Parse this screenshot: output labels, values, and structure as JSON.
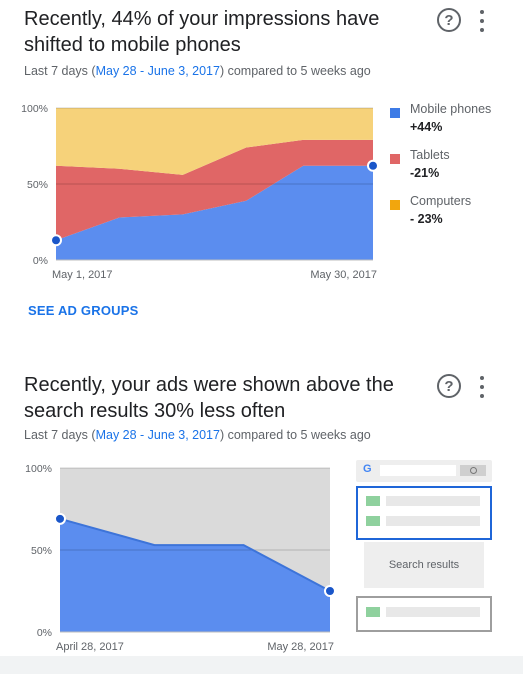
{
  "card1": {
    "title": "Recently, 44% of your impressions have shifted to mobile phones",
    "subtitle_prefix": "Last 7 days (",
    "subtitle_range": "May 28 - June 3, 2017",
    "subtitle_suffix": ") compared to 5 weeks ago",
    "help_icon": "help-circle-icon",
    "menu_icon": "more-vert-icon",
    "action_label": "SEE AD GROUPS",
    "legend": [
      {
        "name": "Mobile phones",
        "change": "+44%",
        "color": "#3d7be6"
      },
      {
        "name": "Tablets",
        "change": "-21%",
        "color": "#e06666"
      },
      {
        "name": "Computers",
        "change": "- 23%",
        "color": "#f2a60d"
      }
    ]
  },
  "card2": {
    "title": "Recently, your ads were shown above the search results 30% less often",
    "subtitle_prefix": "Last 7 days (",
    "subtitle_range": "May 28 - June 3, 2017",
    "subtitle_suffix": ") compared to 5 weeks ago",
    "help_icon": "help-circle-icon",
    "menu_icon": "more-vert-icon",
    "serp": {
      "logo": "G",
      "results_label": "Search results"
    }
  },
  "chart_data": [
    {
      "type": "area",
      "stacked": true,
      "y_tick_labels": [
        "100%",
        "50%",
        "0%"
      ],
      "x_tick_labels": [
        "May 1, 2017",
        "May 30, 2017"
      ],
      "ylim": [
        0,
        100
      ],
      "x": [
        0,
        1,
        2,
        3,
        4,
        5
      ],
      "series": [
        {
          "name": "Mobile phones",
          "values": [
            13,
            28,
            30,
            39,
            62,
            62
          ],
          "color": "#5b8def"
        },
        {
          "name": "Tablets",
          "values": [
            49,
            32,
            26,
            35,
            17,
            17
          ],
          "color": "#e06666"
        },
        {
          "name": "Computers",
          "values": [
            38,
            40,
            44,
            26,
            21,
            21
          ],
          "color": "#f6d27a"
        }
      ],
      "x_positions": [
        0,
        0.2,
        0.4,
        0.6,
        0.78,
        1.0
      ],
      "markers": [
        {
          "series": 0,
          "index": 0
        },
        {
          "series": 0,
          "index": 5
        }
      ],
      "grid": true
    },
    {
      "type": "area",
      "y_tick_labels": [
        "100%",
        "50%",
        "0%"
      ],
      "x_tick_labels": [
        "April 28, 2017",
        "May 28, 2017"
      ],
      "ylim": [
        0,
        100
      ],
      "series": [
        {
          "values": [
            69,
            53,
            53,
            25
          ],
          "color": "#5b8def"
        }
      ],
      "x_positions": [
        0,
        0.35,
        0.68,
        1.0
      ],
      "markers": [
        {
          "series": 0,
          "index": 0
        },
        {
          "series": 0,
          "index": 3
        }
      ],
      "background_color": "#dadada",
      "grid": true
    }
  ]
}
